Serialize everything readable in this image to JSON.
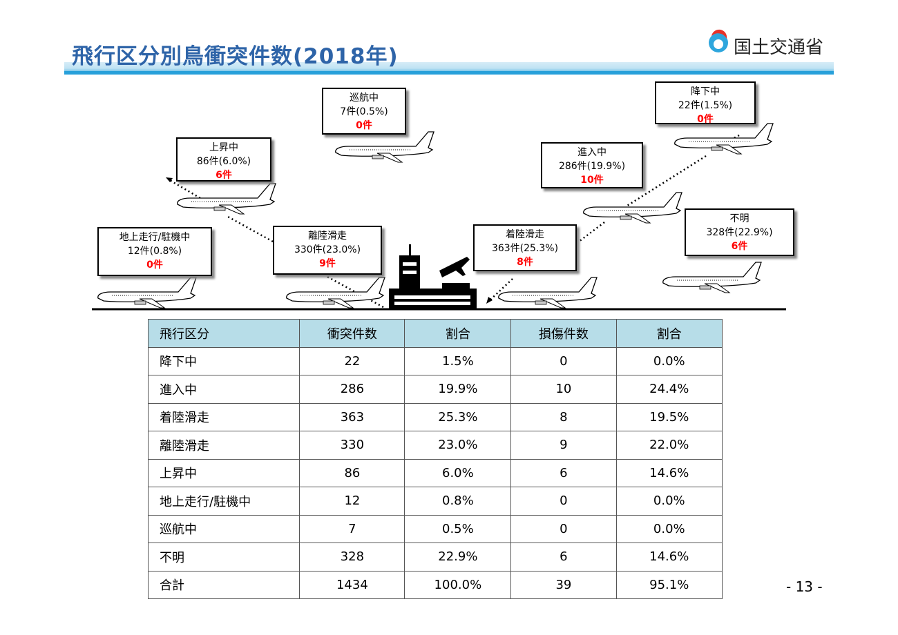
{
  "header": {
    "title": "飛行区分別鳥衝突件数(2018年)",
    "logo": "国土交通省"
  },
  "phases": [
    {
      "label": "巡航中",
      "count": "7件(0.5%)",
      "damage": "0件"
    },
    {
      "label": "降下中",
      "count": "22件(1.5%)",
      "damage": "0件"
    },
    {
      "label": "上昇中",
      "count": "86件(6.0%)",
      "damage": "6件"
    },
    {
      "label": "進入中",
      "count": "286件(19.9%)",
      "damage": "10件"
    },
    {
      "label": "地上走行/駐機中",
      "count": "12件(0.8%)",
      "damage": "0件"
    },
    {
      "label": "離陸滑走",
      "count": "330件(23.0%)",
      "damage": "9件"
    },
    {
      "label": "着陸滑走",
      "count": "363件(25.3%)",
      "damage": "8件"
    },
    {
      "label": "不明",
      "count": "328件(22.9%)",
      "damage": "6件"
    }
  ],
  "table": {
    "header": [
      "飛行区分",
      "衝突件数",
      "割合",
      "損傷件数",
      "割合"
    ],
    "rows": [
      [
        "降下中",
        "22",
        "1.5%",
        "0",
        "0.0%"
      ],
      [
        "進入中",
        "286",
        "19.9%",
        "10",
        "24.4%"
      ],
      [
        "着陸滑走",
        "363",
        "25.3%",
        "8",
        "19.5%"
      ],
      [
        "離陸滑走",
        "330",
        "23.0%",
        "9",
        "22.0%"
      ],
      [
        "上昇中",
        "86",
        "6.0%",
        "6",
        "14.6%"
      ],
      [
        "地上走行/駐機中",
        "12",
        "0.8%",
        "0",
        "0.0%"
      ],
      [
        "巡航中",
        "7",
        "0.5%",
        "0",
        "0.0%"
      ],
      [
        "不明",
        "328",
        "22.9%",
        "6",
        "14.6%"
      ],
      [
        "合計",
        "1434",
        "100.0%",
        "39",
        "95.1%"
      ]
    ]
  },
  "page_number": "- 13 -"
}
